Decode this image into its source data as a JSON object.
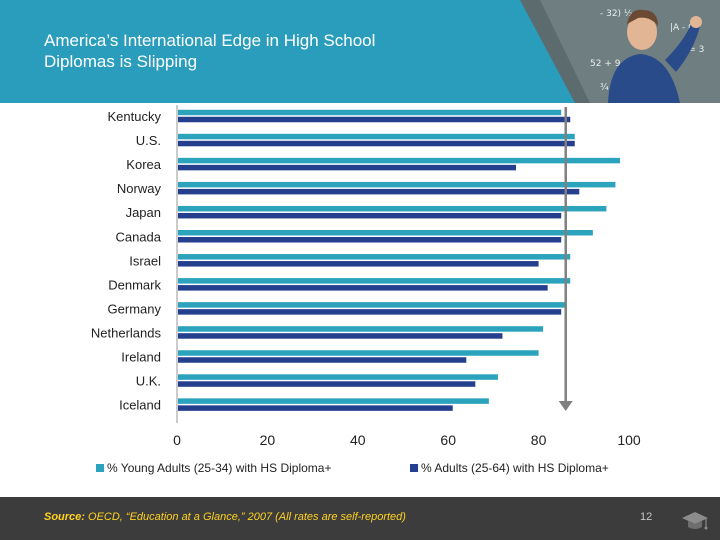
{
  "slide": {
    "title_line1": "America’s International Edge in High School",
    "title_line2": "Diplomas is Slipping",
    "source_label": "Source:",
    "source_text": " OECD, “Education at a Glance,” 2007 (All rates are self-reported)",
    "page_number": "12"
  },
  "colors": {
    "header": "#2a9dbd",
    "young": "#2ba3bd",
    "adults": "#233f8e",
    "footer": "#3c3c3c",
    "source_text": "#ffd21f"
  },
  "chart_data": {
    "type": "bar",
    "orientation": "horizontal",
    "categories": [
      "Kentucky",
      "U.S.",
      "Korea",
      "Norway",
      "Japan",
      "Canada",
      "Israel",
      "Denmark",
      "Germany",
      "Netherlands",
      "Ireland",
      "U.K.",
      "Iceland"
    ],
    "series": [
      {
        "name": "% Young Adults (25-34) with HS Diploma+",
        "values": [
          85,
          88,
          98,
          97,
          95,
          92,
          87,
          87,
          86,
          81,
          80,
          71,
          69
        ]
      },
      {
        "name": "% Adults (25-64) with HS Diploma+",
        "values": [
          87,
          88,
          75,
          89,
          85,
          85,
          80,
          82,
          85,
          72,
          64,
          66,
          61
        ]
      }
    ],
    "xlim": [
      0,
      100
    ],
    "xticks": [
      "0",
      "20",
      "40",
      "60",
      "80",
      "100"
    ],
    "annotation_arrow_x": 86,
    "legend_position": "bottom",
    "grid": false
  }
}
